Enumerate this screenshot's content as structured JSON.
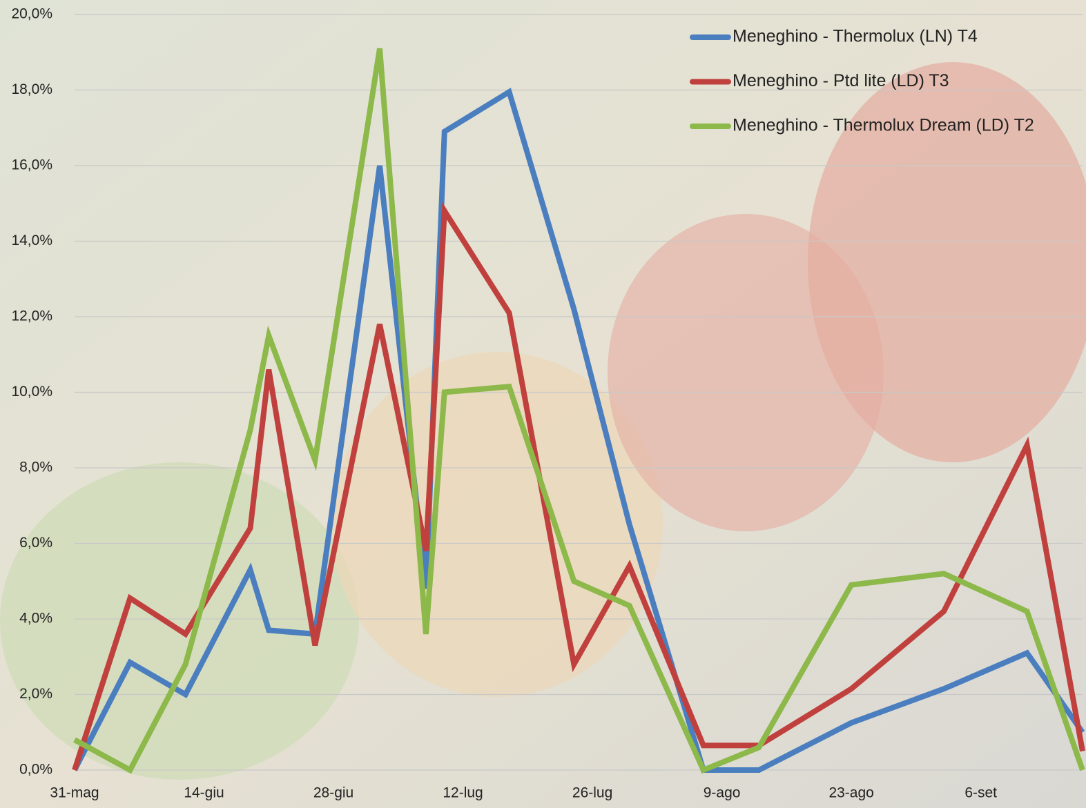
{
  "chart_data": {
    "type": "line",
    "x": [
      "31-mag",
      "6-giu",
      "12-giu",
      "19-giu",
      "21-giu",
      "26-giu",
      "3-lug",
      "8-lug",
      "10-lug",
      "17-lug",
      "24-lug",
      "30-lug",
      "7-ago",
      "13-ago",
      "23-ago",
      "2-set",
      "11-set",
      "17-set"
    ],
    "xlim": [
      "31-mag",
      "17-set"
    ],
    "xticks": [
      "31-mag",
      "14-giu",
      "28-giu",
      "12-lug",
      "26-lug",
      "9-ago",
      "23-ago",
      "6-set"
    ],
    "ylim": [
      0,
      20
    ],
    "yticks": [
      {
        "value": 0,
        "label": "0,0%"
      },
      {
        "value": 2,
        "label": "2,0%"
      },
      {
        "value": 4,
        "label": "4,0%"
      },
      {
        "value": 6,
        "label": "6,0%"
      },
      {
        "value": 8,
        "label": "8,0%"
      },
      {
        "value": 10,
        "label": "10,0%"
      },
      {
        "value": 12,
        "label": "12,0%"
      },
      {
        "value": 14,
        "label": "14,0%"
      },
      {
        "value": 16,
        "label": "16,0%"
      },
      {
        "value": 18,
        "label": "18,0%"
      },
      {
        "value": 20,
        "label": "20,0%"
      }
    ],
    "grid": true,
    "legend": "top-right",
    "series": [
      {
        "name": "Meneghino - Thermolux (LN) T4",
        "color": "#4a7ebf",
        "values": [
          0,
          2.85,
          2.0,
          5.3,
          3.7,
          3.6,
          16.0,
          4.8,
          16.9,
          17.95,
          12.2,
          6.5,
          0,
          0,
          1.25,
          2.15,
          3.1,
          1.0
        ]
      },
      {
        "name": "Meneghino - Ptd lite (LD) T3",
        "color": "#c0403e",
        "values": [
          0,
          4.55,
          3.6,
          6.4,
          10.6,
          3.3,
          11.8,
          5.8,
          14.8,
          12.1,
          2.8,
          5.4,
          0.65,
          0.65,
          2.15,
          4.2,
          8.6,
          0.5
        ]
      },
      {
        "name": "Meneghino - Thermolux Dream (LD) T2",
        "color": "#8db84a",
        "values": [
          0.8,
          0,
          2.8,
          9.0,
          11.5,
          8.2,
          19.1,
          3.6,
          10.0,
          10.15,
          5.0,
          4.35,
          0,
          0.6,
          4.9,
          5.2,
          4.2,
          0
        ]
      }
    ]
  }
}
